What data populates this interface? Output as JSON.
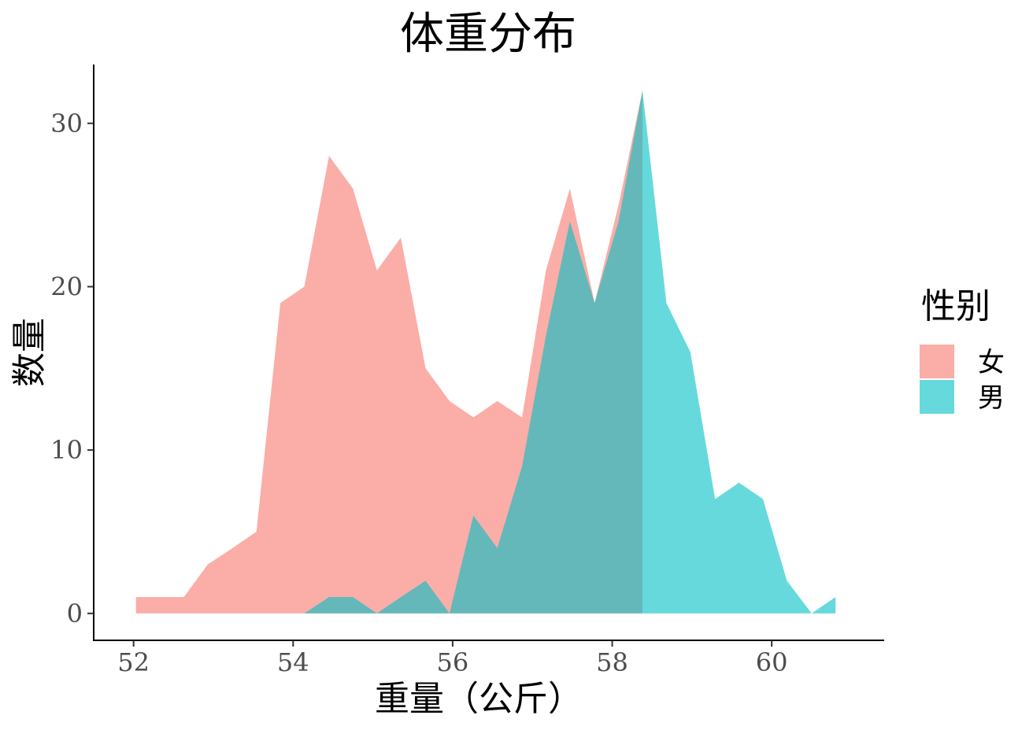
{
  "chart_data": {
    "type": "area",
    "title": "体重分布",
    "xlabel": "重量（公斤）",
    "ylabel": "数量",
    "xlim": [
      51.5,
      61.4
    ],
    "ylim": [
      -1.6,
      33.6
    ],
    "xticks": [
      52,
      54,
      56,
      58,
      60
    ],
    "yticks": [
      0,
      10,
      20,
      30
    ],
    "grid": false,
    "legend": {
      "title": "性别",
      "position": "right"
    },
    "series": [
      {
        "name": "女",
        "color": "#F8766D",
        "alpha": 0.6,
        "x": [
          52.03,
          52.33,
          52.63,
          52.93,
          53.24,
          53.54,
          53.84,
          54.14,
          54.45,
          54.75,
          55.05,
          55.35,
          55.66,
          55.96,
          56.26,
          56.56,
          56.87,
          57.17,
          57.47,
          57.78,
          58.08,
          58.38
        ],
        "values": [
          1,
          1,
          1,
          3,
          4,
          5,
          19,
          20,
          28,
          26,
          21,
          23,
          15,
          13,
          12,
          13,
          12,
          21,
          26,
          19,
          25,
          32
        ]
      },
      {
        "name": "男",
        "color": "#00BFC4",
        "alpha": 0.6,
        "x": [
          54.14,
          54.45,
          54.75,
          55.05,
          55.35,
          55.66,
          55.96,
          56.26,
          56.56,
          56.87,
          57.17,
          57.47,
          57.78,
          58.08,
          58.38,
          58.68,
          58.98,
          59.29,
          59.59,
          59.89,
          60.19,
          60.5,
          60.8
        ],
        "values": [
          0,
          1,
          1,
          0,
          1,
          2,
          0,
          6,
          4,
          9,
          17,
          24,
          19,
          24,
          32,
          19,
          16,
          7,
          8,
          7,
          2,
          0,
          1
        ]
      }
    ]
  }
}
